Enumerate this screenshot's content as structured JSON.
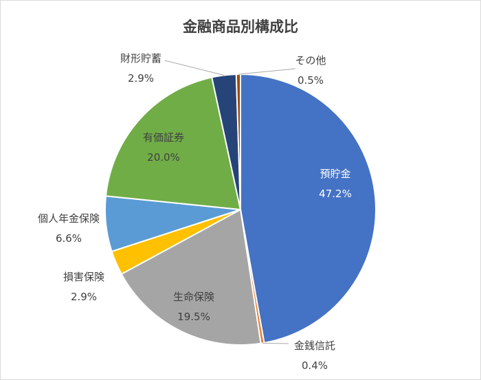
{
  "chart_data": {
    "type": "pie",
    "title": "金融商品別構成比",
    "start_angle": 0,
    "direction": "clockwise",
    "legend": "none",
    "slices": [
      {
        "label": "預貯金",
        "value": 47.2,
        "display": "47.2%",
        "color": "#4472C4"
      },
      {
        "label": "金銭信託",
        "value": 0.4,
        "display": "0.4%",
        "color": "#ED7D31"
      },
      {
        "label": "生命保険",
        "value": 19.5,
        "display": "19.5%",
        "color": "#A5A5A5"
      },
      {
        "label": "損害保険",
        "value": 2.9,
        "display": "2.9%",
        "color": "#FFC000"
      },
      {
        "label": "個人年金保険",
        "value": 6.6,
        "display": "6.6%",
        "color": "#5B9BD5"
      },
      {
        "label": "有価証券",
        "value": 20.0,
        "display": "20.0%",
        "color": "#70AD47"
      },
      {
        "label": "財形貯蓄",
        "value": 2.9,
        "display": "2.9%",
        "color": "#264478"
      },
      {
        "label": "その他",
        "value": 0.5,
        "display": "0.5%",
        "color": "#9E480E"
      }
    ]
  }
}
